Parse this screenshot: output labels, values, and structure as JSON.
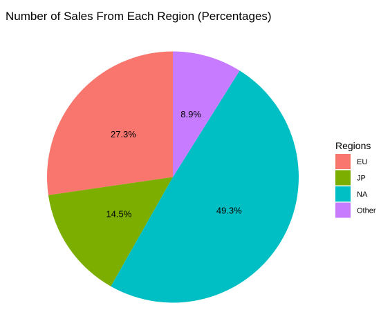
{
  "chart_data": {
    "type": "pie",
    "title": "Number of Sales From Each Region (Percentages)",
    "legend_title": "Regions",
    "legend_position": "right",
    "slices": [
      {
        "category": "EU",
        "value": 27.3,
        "label": "27.3%",
        "color": "#F8766D"
      },
      {
        "category": "JP",
        "value": 14.5,
        "label": "14.5%",
        "color": "#7CAE00"
      },
      {
        "category": "NA",
        "value": 49.3,
        "label": "49.3%",
        "color": "#00BFC4"
      },
      {
        "category": "Other",
        "value": 8.9,
        "label": "8.9%",
        "color": "#C77CFF"
      }
    ],
    "legend_items": [
      {
        "label": "EU",
        "color": "#F8766D"
      },
      {
        "label": "JP",
        "color": "#7CAE00"
      },
      {
        "label": "NA",
        "color": "#00BFC4"
      },
      {
        "label": "Other",
        "color": "#C77CFF"
      }
    ]
  }
}
